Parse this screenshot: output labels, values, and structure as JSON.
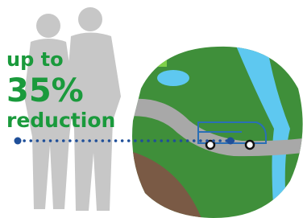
{
  "headline": {
    "line1": "up to",
    "line2": "35%",
    "line3": "reduction"
  }
}
